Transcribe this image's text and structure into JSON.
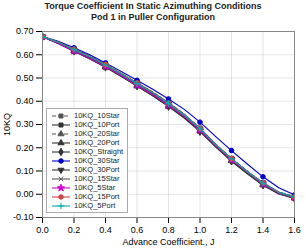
{
  "chart_data": {
    "type": "line",
    "title": "Torque Coefficient In Static Azimuthing Conditions",
    "subtitle": "Pod 1 in Puller Configuration",
    "xlabel": "Advance Coefficient., J",
    "ylabel": "10KQ",
    "x": [
      0.0,
      0.1,
      0.2,
      0.3,
      0.4,
      0.5,
      0.6,
      0.7,
      0.8,
      0.9,
      1.0,
      1.1,
      1.2,
      1.3,
      1.4,
      1.5,
      1.6
    ],
    "xlim": [
      0.0,
      1.6
    ],
    "xticks": [
      {
        "value": 0.0,
        "label": "0.0"
      },
      0.2,
      0.4,
      0.6,
      0.8,
      {
        "value": 1.0,
        "label": "1.0"
      },
      1.2,
      1.4,
      1.6
    ],
    "ylim": [
      -0.1,
      0.7
    ],
    "yticks": [
      {
        "value": -0.1,
        "label": "-0.10"
      },
      {
        "value": 0.0,
        "label": "0.00"
      },
      {
        "value": 0.1,
        "label": "0.10"
      },
      {
        "value": 0.2,
        "label": "0.20"
      },
      {
        "value": 0.3,
        "label": "0.30"
      },
      {
        "value": 0.4,
        "label": "0.40"
      },
      {
        "value": 0.5,
        "label": "0.50"
      },
      {
        "value": 0.6,
        "label": "0.60"
      },
      {
        "value": 0.7,
        "label": "0.70"
      }
    ],
    "grid": true,
    "legend": "lower left",
    "series": [
      {
        "name": "10KQ_10Star",
        "color": "#555555",
        "line_style": "dashed",
        "marker": "square",
        "values": [
          0.678,
          0.655,
          0.625,
          0.595,
          0.56,
          0.52,
          0.48,
          0.44,
          0.395,
          0.345,
          0.285,
          0.215,
          0.155,
          0.1,
          0.05,
          0.01,
          -0.01
        ]
      },
      {
        "name": "10KQ_10Port",
        "color": "#333333",
        "line_style": "solid",
        "marker": "square",
        "values": [
          0.678,
          0.655,
          0.623,
          0.592,
          0.557,
          0.518,
          0.477,
          0.437,
          0.392,
          0.341,
          0.281,
          0.212,
          0.152,
          0.097,
          0.048,
          0.008,
          -0.012
        ]
      },
      {
        "name": "10KQ_20Star",
        "color": "#555555",
        "line_style": "dashed",
        "marker": "triangle-up",
        "values": [
          0.678,
          0.65,
          0.618,
          0.587,
          0.551,
          0.51,
          0.47,
          0.428,
          0.382,
          0.333,
          0.275,
          0.208,
          0.148,
          0.093,
          0.043,
          0.004,
          -0.015
        ]
      },
      {
        "name": "10KQ_20Port",
        "color": "#333333",
        "line_style": "solid",
        "marker": "triangle-up",
        "values": [
          0.678,
          0.648,
          0.615,
          0.583,
          0.547,
          0.507,
          0.466,
          0.424,
          0.378,
          0.329,
          0.271,
          0.205,
          0.144,
          0.09,
          0.04,
          0.002,
          -0.017
        ]
      },
      {
        "name": "10KQ_Straight",
        "color": "#333333",
        "line_style": "solid",
        "marker": "diamond",
        "values": [
          0.676,
          0.648,
          0.615,
          0.582,
          0.546,
          0.506,
          0.465,
          0.423,
          0.377,
          0.328,
          0.269,
          0.203,
          0.142,
          0.088,
          0.039,
          0.001,
          -0.018
        ]
      },
      {
        "name": "10KQ_30Star",
        "color": "#0000cc",
        "line_style": "solid",
        "marker": "circle",
        "values": [
          0.678,
          0.658,
          0.63,
          0.6,
          0.565,
          0.528,
          0.49,
          0.452,
          0.41,
          0.365,
          0.31,
          0.248,
          0.188,
          0.13,
          0.075,
          0.028,
          -0.003
        ]
      },
      {
        "name": "10KQ_30Port",
        "color": "#333333",
        "line_style": "solid",
        "marker": "triangle-down",
        "values": [
          0.678,
          0.652,
          0.62,
          0.588,
          0.553,
          0.514,
          0.473,
          0.432,
          0.387,
          0.338,
          0.279,
          0.212,
          0.152,
          0.097,
          0.048,
          0.009,
          -0.013
        ]
      },
      {
        "name": "10KQ_15Star",
        "color": "#555555",
        "line_style": "solid",
        "marker": "x",
        "values": [
          0.678,
          0.653,
          0.622,
          0.591,
          0.555,
          0.516,
          0.475,
          0.435,
          0.39,
          0.34,
          0.28,
          0.211,
          0.151,
          0.096,
          0.047,
          0.007,
          -0.013
        ]
      },
      {
        "name": "10KQ_5Star",
        "color": "#cc00cc",
        "line_style": "solid",
        "marker": "star",
        "values": [
          0.678,
          0.648,
          0.616,
          0.584,
          0.549,
          0.51,
          0.469,
          0.428,
          0.383,
          0.334,
          0.275,
          0.208,
          0.148,
          0.094,
          0.044,
          0.005,
          -0.014
        ]
      },
      {
        "name": "10KQ_15Port",
        "color": "#cc4444",
        "line_style": "solid",
        "marker": "circle",
        "values": [
          0.678,
          0.655,
          0.624,
          0.593,
          0.558,
          0.519,
          0.479,
          0.438,
          0.393,
          0.343,
          0.283,
          0.213,
          0.153,
          0.098,
          0.049,
          0.009,
          -0.011
        ]
      },
      {
        "name": "10KQ_5Port",
        "color": "#00aaaa",
        "line_style": "solid",
        "marker": "plus",
        "values": [
          0.678,
          0.654,
          0.622,
          0.591,
          0.556,
          0.517,
          0.476,
          0.436,
          0.39,
          0.341,
          0.281,
          0.212,
          0.152,
          0.097,
          0.048,
          0.008,
          -0.012
        ]
      }
    ]
  }
}
